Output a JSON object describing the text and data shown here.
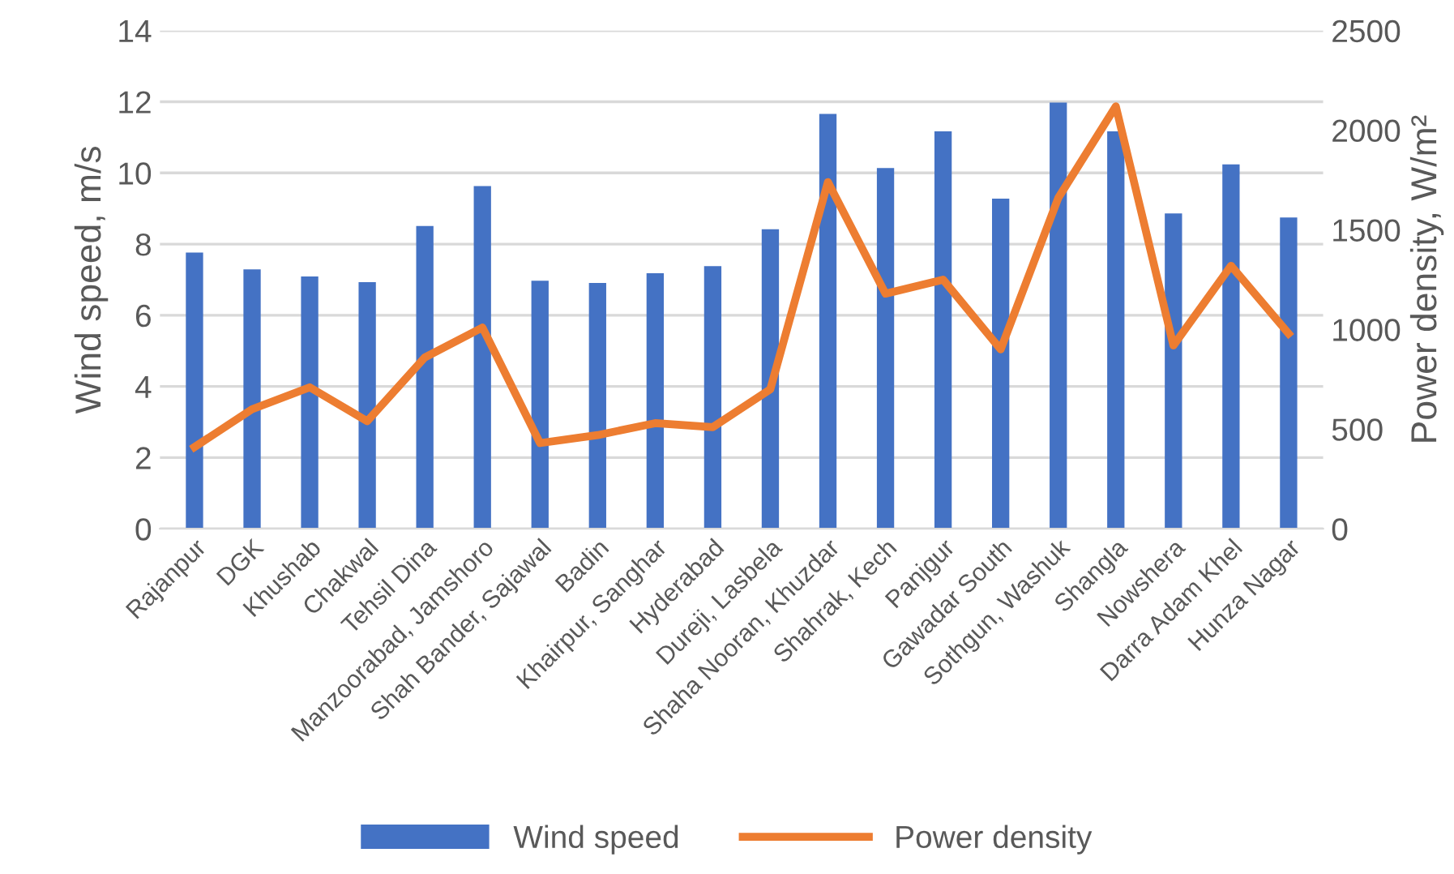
{
  "chart_data": {
    "type": "bar",
    "xlabel": null,
    "ylabel": "Wind speed, m/s",
    "y2label": "Power density, W/m²",
    "categories": [
      "Rajanpur",
      "DGK",
      "Khushab",
      "Chakwal",
      "Tehsil Dina",
      "Manzoorabad, Jamshoro",
      "Shah Bander, Sajawal",
      "Badin",
      "Khairpur, Sanghar",
      "Hyderabad",
      "Dureji, Lasbela",
      "Shaha Nooran, Khuzdar",
      "Shahrak, Kech",
      "Panjgur",
      "Gawadar South",
      "Sothgun, Washuk",
      "Shangla",
      "Nowshera",
      "Darra Adam Khel",
      "Hunza Nagar"
    ],
    "series": [
      {
        "name": "Wind speed",
        "color": "#4472c4",
        "values": [
          7.76,
          7.29,
          7.09,
          6.93,
          8.51,
          9.63,
          6.97,
          6.91,
          7.18,
          7.38,
          8.42,
          11.66,
          10.14,
          11.17,
          9.28,
          11.98,
          11.17,
          8.86,
          10.24,
          8.75
        ]
      },
      {
        "name": "Power density",
        "type": "line",
        "axis": "y2",
        "color": "#ed7d31",
        "values": [
          410,
          600,
          710,
          540,
          860,
          1010,
          430,
          470,
          530,
          510,
          700,
          1740,
          1180,
          1250,
          900,
          1660,
          2120,
          920,
          1320,
          980
        ]
      }
    ],
    "ylim": [
      0,
      14
    ],
    "yticks": [
      0,
      2,
      4,
      6,
      8,
      10,
      12,
      14
    ],
    "y2lim": [
      0,
      2500
    ],
    "y2ticks": [
      0,
      500,
      1000,
      1500,
      2000,
      2500
    ],
    "grid": "y",
    "legend": "bottom",
    "marker": "none",
    "line_style": "solid"
  }
}
